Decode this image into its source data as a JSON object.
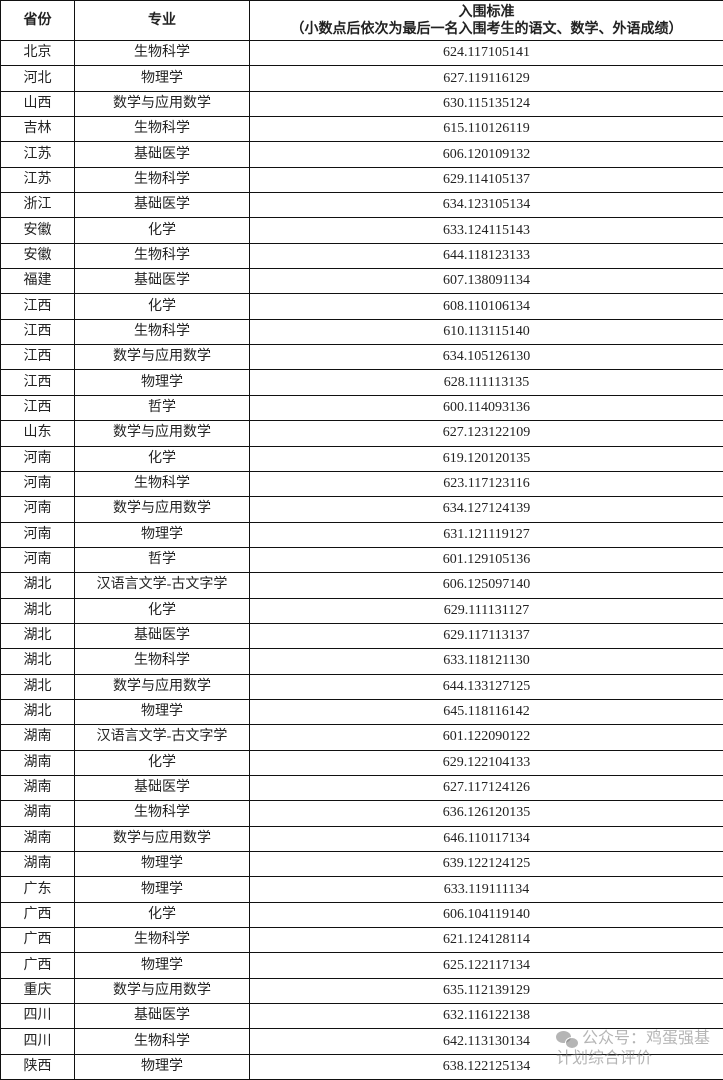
{
  "header": {
    "province": "省份",
    "major": "专业",
    "standard_title": "入围标准",
    "standard_note": "（小数点后依次为最后一名入围考生的语文、数学、外语成绩）"
  },
  "rows": [
    {
      "province": "北京",
      "major": "生物科学",
      "score": "624.117105141"
    },
    {
      "province": "河北",
      "major": "物理学",
      "score": "627.119116129"
    },
    {
      "province": "山西",
      "major": "数学与应用数学",
      "score": "630.115135124"
    },
    {
      "province": "吉林",
      "major": "生物科学",
      "score": "615.110126119"
    },
    {
      "province": "江苏",
      "major": "基础医学",
      "score": "606.120109132"
    },
    {
      "province": "江苏",
      "major": "生物科学",
      "score": "629.114105137"
    },
    {
      "province": "浙江",
      "major": "基础医学",
      "score": "634.123105134"
    },
    {
      "province": "安徽",
      "major": "化学",
      "score": "633.124115143"
    },
    {
      "province": "安徽",
      "major": "生物科学",
      "score": "644.118123133"
    },
    {
      "province": "福建",
      "major": "基础医学",
      "score": "607.138091134"
    },
    {
      "province": "江西",
      "major": "化学",
      "score": "608.110106134"
    },
    {
      "province": "江西",
      "major": "生物科学",
      "score": "610.113115140"
    },
    {
      "province": "江西",
      "major": "数学与应用数学",
      "score": "634.105126130"
    },
    {
      "province": "江西",
      "major": "物理学",
      "score": "628.111113135"
    },
    {
      "province": "江西",
      "major": "哲学",
      "score": "600.114093136"
    },
    {
      "province": "山东",
      "major": "数学与应用数学",
      "score": "627.123122109"
    },
    {
      "province": "河南",
      "major": "化学",
      "score": "619.120120135"
    },
    {
      "province": "河南",
      "major": "生物科学",
      "score": "623.117123116"
    },
    {
      "province": "河南",
      "major": "数学与应用数学",
      "score": "634.127124139"
    },
    {
      "province": "河南",
      "major": "物理学",
      "score": "631.121119127"
    },
    {
      "province": "河南",
      "major": "哲学",
      "score": "601.129105136"
    },
    {
      "province": "湖北",
      "major": "汉语言文学-古文字学",
      "score": "606.125097140"
    },
    {
      "province": "湖北",
      "major": "化学",
      "score": "629.111131127"
    },
    {
      "province": "湖北",
      "major": "基础医学",
      "score": "629.117113137"
    },
    {
      "province": "湖北",
      "major": "生物科学",
      "score": "633.118121130"
    },
    {
      "province": "湖北",
      "major": "数学与应用数学",
      "score": "644.133127125"
    },
    {
      "province": "湖北",
      "major": "物理学",
      "score": "645.118116142"
    },
    {
      "province": "湖南",
      "major": "汉语言文学-古文字学",
      "score": "601.122090122"
    },
    {
      "province": "湖南",
      "major": "化学",
      "score": "629.122104133"
    },
    {
      "province": "湖南",
      "major": "基础医学",
      "score": "627.117124126"
    },
    {
      "province": "湖南",
      "major": "生物科学",
      "score": "636.126120135"
    },
    {
      "province": "湖南",
      "major": "数学与应用数学",
      "score": "646.110117134"
    },
    {
      "province": "湖南",
      "major": "物理学",
      "score": "639.122124125"
    },
    {
      "province": "广东",
      "major": "物理学",
      "score": "633.119111134"
    },
    {
      "province": "广西",
      "major": "化学",
      "score": "606.104119140"
    },
    {
      "province": "广西",
      "major": "生物科学",
      "score": "621.124128114"
    },
    {
      "province": "广西",
      "major": "物理学",
      "score": "625.122117134"
    },
    {
      "province": "重庆",
      "major": "数学与应用数学",
      "score": "635.112139129"
    },
    {
      "province": "四川",
      "major": "基础医学",
      "score": "632.116122138"
    },
    {
      "province": "四川",
      "major": "生物科学",
      "score": "642.113130134"
    },
    {
      "province": "陕西",
      "major": "物理学",
      "score": "638.122125134"
    }
  ],
  "watermark": {
    "icon": "wechat-icon",
    "text": "公众号：鸡蛋强基计划综合评价"
  }
}
